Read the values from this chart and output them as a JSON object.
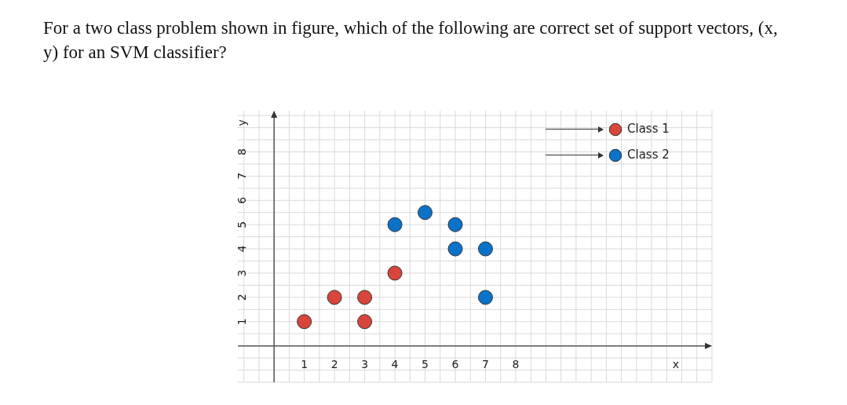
{
  "chart_data": {
    "type": "scatter",
    "title": "For a two class problem shown in figure, which of the following are correct set of support vectors, (x, y) for an SVM classifier?",
    "xlabel": "x",
    "ylabel": "y",
    "xlim": [
      -1.2,
      14.5
    ],
    "ylim": [
      -1.5,
      9.7
    ],
    "xticks": [
      1,
      2,
      3,
      4,
      5,
      6,
      7,
      8
    ],
    "yticks": [
      1,
      2,
      3,
      4,
      5,
      6,
      7,
      8
    ],
    "grid": true,
    "legend": "top right",
    "marker": "circle",
    "series": [
      {
        "name": "Class 1",
        "color": "#d8453b",
        "x": [
          1,
          2,
          3,
          3,
          4
        ],
        "values": [
          1,
          2,
          2,
          1,
          3
        ]
      },
      {
        "name": "Class 2",
        "color": "#0b72c9",
        "x": [
          4,
          5,
          6,
          6,
          7,
          7
        ],
        "values": [
          5,
          5.5,
          5,
          4,
          4,
          2
        ]
      }
    ]
  }
}
